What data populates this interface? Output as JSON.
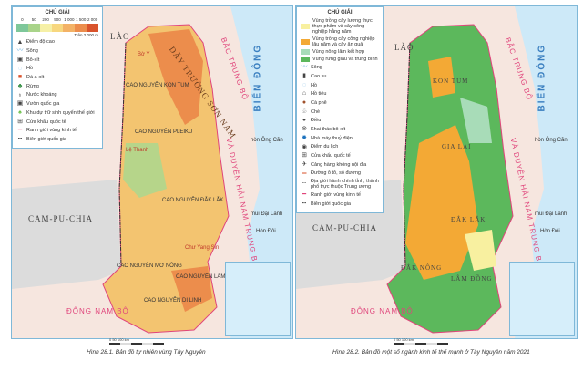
{
  "map1": {
    "legend": {
      "title": "CHÚ GIẢI",
      "elevation_ticks": [
        "0",
        "50",
        "200",
        "500",
        "1 000",
        "1 500",
        "2 000"
      ],
      "elevation_colors": [
        "#7ec79a",
        "#a9d48a",
        "#f6f0a6",
        "#f7d77f",
        "#f3b266",
        "#ec8d4c",
        "#d9532c"
      ],
      "elevation_unit": "Trên 2 000 m",
      "items": [
        {
          "icon": "peak",
          "label": "Điểm độ cao"
        },
        {
          "icon": "river",
          "label": "Sông"
        },
        {
          "icon": "bauxite",
          "label": "Bô-xít"
        },
        {
          "icon": "lake",
          "label": "Hồ"
        },
        {
          "icon": "basalt",
          "label": "Đá a-xít"
        },
        {
          "icon": "forest",
          "label": "Rừng"
        },
        {
          "icon": "mineral-water",
          "label": "Nước khoáng"
        },
        {
          "icon": "national-park",
          "label": "Vườn quốc gia"
        },
        {
          "icon": "biosphere",
          "label": "Khu dự trữ sinh quyển thế giới"
        },
        {
          "icon": "border-gate",
          "label": "Cửa khẩu quốc tế"
        },
        {
          "icon": "economic-boundary",
          "label": "Ranh giới vùng kinh tế"
        },
        {
          "icon": "national-border",
          "label": "Biên giới quốc gia"
        }
      ]
    },
    "labels": {
      "laos": "LÀO",
      "cambodia": "CAM-PU-CHIA",
      "bac_trung_bo": "BẮC TRUNG BỘ",
      "duyen_hai": "VÀ DUYÊN HẢI NAM TRUNG BỘ",
      "bien_dong": "BIỂN ĐÔNG",
      "dong_nam_bo": "ĐÔNG NAM BỘ",
      "truong_son": "DÃY TRƯỜNG SƠN NAM",
      "kon_tum": "CAO NGUYÊN KON TUM",
      "pleiku": "CAO NGUYÊN PLEIKU",
      "dak_lak": "CAO NGUYÊN ĐẮK LẮK",
      "mo_nong": "CAO NGUYÊN MƠ NÔNG",
      "lam_vien": "CAO NGUYÊN LÂM VIÊN",
      "di_linh": "CAO NGUYÊN DI LINH",
      "bo_y": "Bờ Y",
      "le_thanh": "Lệ Thanh",
      "chu_yang_sin": "Chư Yang Sin",
      "ong_can": "hòn Ông Căn",
      "dai_lanh": "mũi Đại Lãnh",
      "hon_doi": "Hòn Đôi"
    },
    "caption": "Hình 28.1. Bản đồ tự nhiên vùng Tây Nguyên",
    "scale": "0   50   100 km"
  },
  "map2": {
    "legend": {
      "title": "CHÚ GIẢI",
      "zones": [
        {
          "color": "#f8f0a0",
          "label": "Vùng trồng cây lương thực, thực phẩm và cây công nghiệp hằng năm"
        },
        {
          "color": "#f3a935",
          "label": "Vùng trồng cây công nghiệp lâu năm và cây ăn quả"
        },
        {
          "color": "#a8dcb8",
          "label": "Vùng nông lâm kết hợp"
        },
        {
          "color": "#5cb85c",
          "label": "Vùng rừng giàu và trung bình"
        }
      ],
      "items": [
        {
          "icon": "river",
          "label": "Sông"
        },
        {
          "icon": "rubber",
          "label": "Cao su"
        },
        {
          "icon": "lake",
          "label": "Hồ"
        },
        {
          "icon": "pepper",
          "label": "Hồ tiêu"
        },
        {
          "icon": "coffee",
          "label": "Cà phê"
        },
        {
          "icon": "tea",
          "label": "Chè"
        },
        {
          "icon": "cashew",
          "label": "Điều"
        },
        {
          "icon": "bauxite-mining",
          "label": "Khai thác bô-xít"
        },
        {
          "icon": "hydropower",
          "label": "Nhà máy thuỷ điện"
        },
        {
          "icon": "tourism",
          "label": "Điểm du lịch"
        },
        {
          "icon": "border-gate",
          "label": "Cửa khẩu quốc tế"
        },
        {
          "icon": "airport",
          "label": "Cảng hàng không nội địa"
        },
        {
          "icon": "road",
          "label": "Đường ô tô, số đường"
        },
        {
          "icon": "admin-boundary",
          "label": "Địa giới hành chính tỉnh, thành phố trực thuộc Trung ương"
        },
        {
          "icon": "economic-boundary",
          "label": "Ranh giới vùng kinh tế"
        },
        {
          "icon": "national-border",
          "label": "Biên giới quốc gia"
        }
      ]
    },
    "labels": {
      "laos": "LÀO",
      "cambodia": "CAM-PU-CHIA",
      "bac_trung_bo": "BẮC TRUNG BỘ",
      "duyen_hai": "VÀ DUYÊN HẢI NAM TRUNG BỘ",
      "bien_dong": "BIỂN ĐÔNG",
      "dong_nam_bo": "ĐÔNG NAM BỘ",
      "kon_tum": "KON TUM",
      "gia_lai": "GIA LAI",
      "dak_lak": "ĐẮK LẮK",
      "dak_nong": "ĐẮK NÔNG",
      "lam_dong": "LÂM ĐỒNG",
      "ong_can": "hòn Ông Căn",
      "dai_lanh": "mũi Đại Lãnh",
      "hon_doi": "Hòn Đôi"
    },
    "caption": "Hình 28.2. Bản đồ một số ngành kinh tế thế mạnh ở Tây Nguyên năm 2021",
    "scale": "0   50   100 km"
  }
}
